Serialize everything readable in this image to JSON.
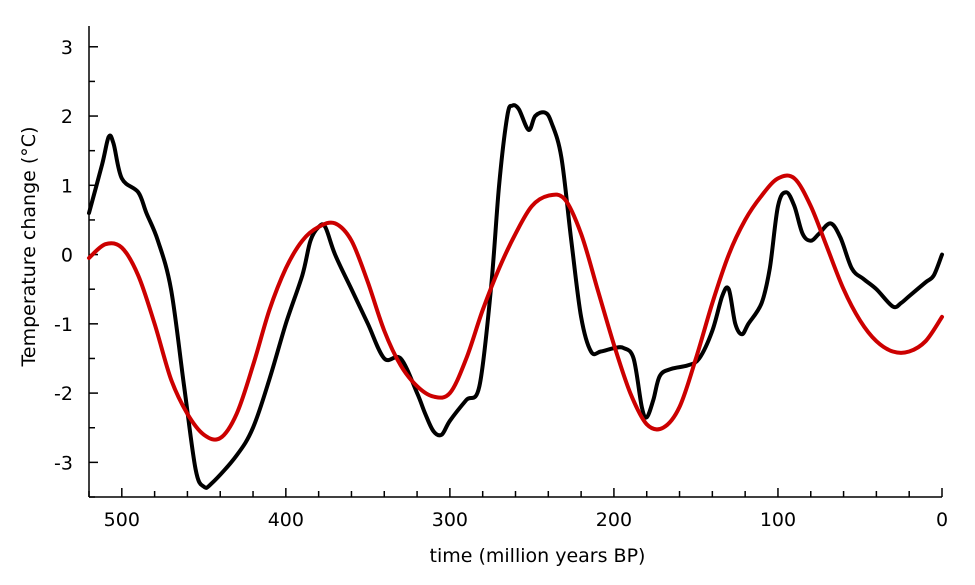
{
  "chart_data": {
    "type": "line",
    "title": "",
    "xlabel": "time (million years BP)",
    "ylabel": "Temperature change (°C)",
    "xlim": [
      520,
      0
    ],
    "ylim": [
      -3.5,
      3.3
    ],
    "x_reversed": true,
    "x_ticks": [
      500,
      400,
      300,
      200,
      100,
      0
    ],
    "x_tick_labels": [
      "500",
      "400",
      "300",
      "200",
      "100",
      "0"
    ],
    "x_minor_step": 20,
    "y_ticks": [
      3,
      2,
      1,
      0,
      -1,
      -2,
      -3
    ],
    "y_tick_labels": [
      "3",
      "2",
      "1",
      "0",
      "-1",
      "-2",
      "-3"
    ],
    "y_minor_step": 0.5,
    "grid": false,
    "legend": "none",
    "series": [
      {
        "color": "#000000",
        "x": [
          520,
          512,
          508,
          505,
          500,
          490,
          485,
          478,
          470,
          462,
          455,
          450,
          445,
          430,
          420,
          410,
          400,
          390,
          385,
          380,
          376,
          370,
          360,
          350,
          340,
          330,
          320,
          315,
          310,
          305,
          300,
          290,
          282,
          275,
          270,
          265,
          262,
          258,
          252,
          248,
          242,
          238,
          232,
          226,
          220,
          214,
          208,
          200,
          194,
          188,
          183,
          180,
          176,
          172,
          165,
          155,
          148,
          140,
          134,
          130,
          126,
          122,
          118,
          110,
          105,
          100,
          95,
          90,
          85,
          80,
          75,
          68,
          62,
          55,
          48,
          40,
          30,
          25,
          20,
          10,
          5,
          0
        ],
        "y": [
          0.6,
          1.3,
          1.7,
          1.6,
          1.1,
          0.9,
          0.6,
          0.2,
          -0.5,
          -1.9,
          -3.1,
          -3.35,
          -3.3,
          -2.9,
          -2.5,
          -1.8,
          -1.0,
          -0.3,
          0.2,
          0.4,
          0.4,
          0.0,
          -0.5,
          -1.0,
          -1.5,
          -1.5,
          -2.0,
          -2.3,
          -2.55,
          -2.6,
          -2.4,
          -2.1,
          -1.9,
          -0.5,
          1.0,
          2.0,
          2.15,
          2.1,
          1.8,
          2.0,
          2.05,
          1.9,
          1.4,
          0.2,
          -0.9,
          -1.4,
          -1.4,
          -1.35,
          -1.35,
          -1.5,
          -2.2,
          -2.35,
          -2.1,
          -1.75,
          -1.65,
          -1.6,
          -1.5,
          -1.1,
          -0.6,
          -0.5,
          -1.0,
          -1.15,
          -1.0,
          -0.7,
          -0.2,
          0.7,
          0.9,
          0.7,
          0.3,
          0.2,
          0.3,
          0.45,
          0.25,
          -0.2,
          -0.35,
          -0.5,
          -0.75,
          -0.7,
          -0.6,
          -0.4,
          -0.3,
          0.0
        ]
      },
      {
        "color": "#cc0000",
        "x": [
          520,
          510,
          500,
          490,
          480,
          470,
          460,
          450,
          440,
          430,
          420,
          410,
          400,
          390,
          380,
          370,
          360,
          350,
          340,
          330,
          320,
          310,
          300,
          290,
          280,
          270,
          260,
          250,
          240,
          230,
          220,
          210,
          200,
          190,
          180,
          170,
          160,
          150,
          140,
          130,
          120,
          110,
          100,
          90,
          80,
          70,
          60,
          50,
          40,
          30,
          20,
          10,
          0
        ],
        "y": [
          -0.05,
          0.15,
          0.1,
          -0.3,
          -1.0,
          -1.8,
          -2.3,
          -2.6,
          -2.65,
          -2.3,
          -1.6,
          -0.8,
          -0.2,
          0.2,
          0.4,
          0.45,
          0.2,
          -0.4,
          -1.1,
          -1.6,
          -1.9,
          -2.05,
          -2.0,
          -1.5,
          -0.8,
          -0.2,
          0.3,
          0.7,
          0.85,
          0.8,
          0.3,
          -0.5,
          -1.3,
          -2.0,
          -2.45,
          -2.5,
          -2.2,
          -1.5,
          -0.7,
          -0.0,
          0.5,
          0.85,
          1.1,
          1.1,
          0.7,
          0.1,
          -0.5,
          -0.95,
          -1.25,
          -1.4,
          -1.4,
          -1.25,
          -0.9
        ]
      }
    ]
  }
}
